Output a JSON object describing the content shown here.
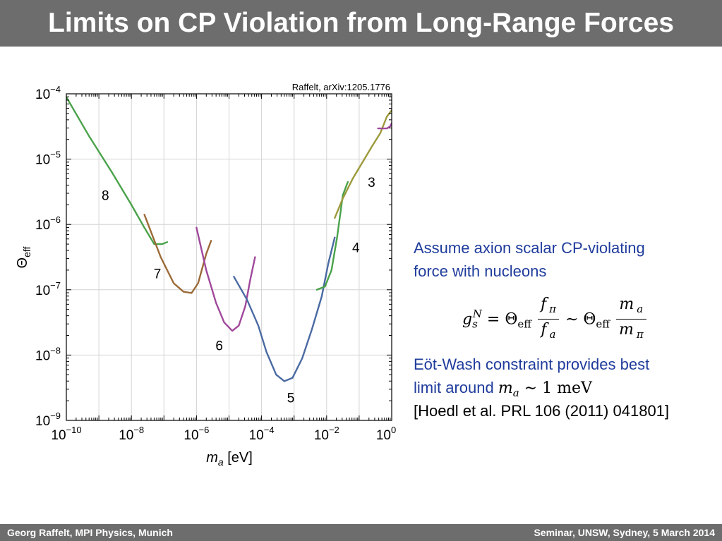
{
  "slide": {
    "title": "Limits on CP Violation from Long-Range Forces",
    "footer_left": "Georg Raffelt, MPI Physics, Munich",
    "footer_right": "Seminar, UNSW, Sydney, 5 March 2014",
    "header_color": "#6d6d6d",
    "text_color": "#1f3c9c"
  },
  "text": {
    "p1_line1": "Assume axion scalar CP-violating",
    "p1_line2": "force with nucleons",
    "p2_line1": "Eöt-Wash constraint provides best",
    "p2_line2": "limit around",
    "ref": "[Hoedl et al. PRL 106 (2011) 041801]",
    "formula": {
      "g": "g",
      "g_sub": "s",
      "g_sup": "N",
      "eq": "= Θ",
      "eff": "eff",
      "f_pi": "f",
      "pi": "π",
      "f_a": "f",
      "a": "a",
      "sim": "∼ Θ",
      "m": "m"
    },
    "inline_math": {
      "m": "m",
      "a": "a",
      "rest": " ∼ 1 meV"
    }
  },
  "chart_data": {
    "type": "line",
    "source_label": "Raffelt, arXiv:1205.1776",
    "xlabel": "eV",
    "xlabel_symbol": "m",
    "xlabel_sub": "a",
    "ylabel_symbol": "Θ",
    "ylabel_sub": "eff",
    "x_scale": "log",
    "y_scale": "log",
    "xlim": [
      1e-10,
      1
    ],
    "ylim": [
      1e-09,
      0.0001
    ],
    "grid": true,
    "x_ticks": [
      {
        "base": "10",
        "exp": "−10",
        "value": -10
      },
      {
        "base": "10",
        "exp": "−8",
        "value": -8
      },
      {
        "base": "10",
        "exp": "−6",
        "value": -6
      },
      {
        "base": "10",
        "exp": "−4",
        "value": -4
      },
      {
        "base": "10",
        "exp": "−2",
        "value": -2
      },
      {
        "base": "10",
        "exp": "0",
        "value": 0
      }
    ],
    "y_ticks": [
      {
        "base": "10",
        "exp": "−4",
        "value": -4
      },
      {
        "base": "10",
        "exp": "−5",
        "value": -5
      },
      {
        "base": "10",
        "exp": "−6",
        "value": -6
      },
      {
        "base": "10",
        "exp": "−7",
        "value": -7
      },
      {
        "base": "10",
        "exp": "−8",
        "value": -8
      },
      {
        "base": "10",
        "exp": "−9",
        "value": -9
      }
    ],
    "series": [
      {
        "name": "8",
        "color": "#4aa24a",
        "label_at": [
          -8.8,
          -5.55
        ],
        "points": [
          [
            -10,
            -4.05
          ],
          [
            -9.3,
            -4.65
          ],
          [
            -8.6,
            -5.2
          ],
          [
            -8.0,
            -5.7
          ],
          [
            -7.6,
            -6.05
          ],
          [
            -7.3,
            -6.3
          ],
          [
            -7.05,
            -6.3
          ],
          [
            -6.9,
            -6.27
          ]
        ]
      },
      {
        "name": "7",
        "color": "#9b6a37",
        "label_at": [
          -7.2,
          -6.75
        ],
        "points": [
          [
            -7.6,
            -5.85
          ],
          [
            -7.1,
            -6.5
          ],
          [
            -6.7,
            -6.9
          ],
          [
            -6.4,
            -7.03
          ],
          [
            -6.15,
            -7.05
          ],
          [
            -5.95,
            -6.9
          ],
          [
            -5.7,
            -6.45
          ],
          [
            -5.55,
            -6.25
          ]
        ]
      },
      {
        "name": "6",
        "color": "#a0489b",
        "label_at": [
          -5.3,
          -7.85
        ],
        "points": [
          [
            -6.0,
            -6.05
          ],
          [
            -5.7,
            -6.7
          ],
          [
            -5.4,
            -7.2
          ],
          [
            -5.15,
            -7.5
          ],
          [
            -4.9,
            -7.63
          ],
          [
            -4.7,
            -7.55
          ],
          [
            -4.5,
            -7.25
          ],
          [
            -4.35,
            -6.85
          ],
          [
            -4.2,
            -6.5
          ]
        ]
      },
      {
        "name": "5",
        "color": "#4a6aa2",
        "label_at": [
          -3.1,
          -8.65
        ],
        "points": [
          [
            -4.85,
            -6.8
          ],
          [
            -4.45,
            -7.15
          ],
          [
            -4.1,
            -7.55
          ],
          [
            -3.85,
            -7.95
          ],
          [
            -3.55,
            -8.3
          ],
          [
            -3.3,
            -8.4
          ],
          [
            -3.05,
            -8.35
          ],
          [
            -2.75,
            -8.05
          ],
          [
            -2.45,
            -7.6
          ],
          [
            -2.15,
            -7.1
          ],
          [
            -1.95,
            -6.6
          ],
          [
            -1.75,
            -6.2
          ]
        ]
      },
      {
        "name": "4",
        "color": "#4aa24a",
        "label_at": [
          -1.1,
          -6.35
        ],
        "points": [
          [
            -2.3,
            -7.0
          ],
          [
            -2.05,
            -6.95
          ],
          [
            -1.85,
            -6.7
          ],
          [
            -1.68,
            -6.2
          ],
          [
            -1.5,
            -5.55
          ],
          [
            -1.35,
            -5.35
          ]
        ]
      },
      {
        "name": "3",
        "color": "#9c9a3c",
        "label_at": [
          -0.62,
          -5.35
        ],
        "points": [
          [
            -1.75,
            -5.9
          ],
          [
            -1.5,
            -5.6
          ],
          [
            -1.2,
            -5.3
          ],
          [
            -0.9,
            -5.05
          ],
          [
            -0.6,
            -4.8
          ],
          [
            -0.35,
            -4.6
          ],
          [
            -0.15,
            -4.35
          ],
          [
            0,
            -4.25
          ]
        ]
      },
      {
        "name": "",
        "color": "#a0489b",
        "label_at": null,
        "points": [
          [
            -0.42,
            -4.53
          ],
          [
            -0.15,
            -4.53
          ],
          [
            -0.05,
            -4.5
          ],
          [
            0,
            -4.45
          ]
        ]
      }
    ]
  }
}
